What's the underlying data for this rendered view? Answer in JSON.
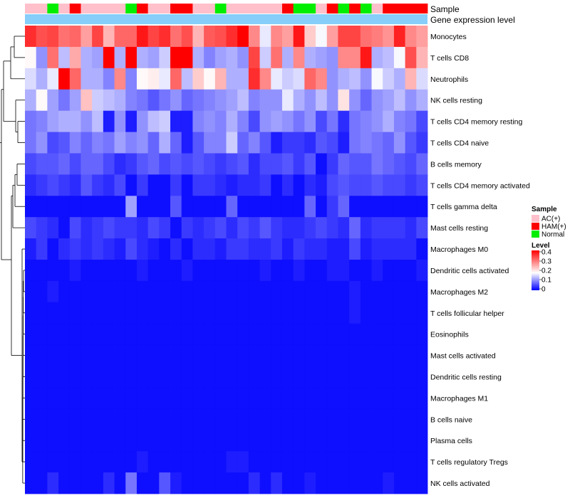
{
  "chart_data": {
    "type": "heatmap",
    "title": "",
    "annotation_tracks": [
      {
        "name": "Sample",
        "label": "Sample"
      },
      {
        "name": "Gene expression level",
        "label": "Gene expression level"
      }
    ],
    "samples": [
      "AC(+)",
      "AC(+)",
      "Normal",
      "AC(+)",
      "HAM(+)",
      "AC(+)",
      "AC(+)",
      "AC(+)",
      "AC(+)",
      "Normal",
      "HAM(+)",
      "AC(+)",
      "AC(+)",
      "HAM(+)",
      "HAM(+)",
      "AC(+)",
      "AC(+)",
      "Normal",
      "AC(+)",
      "AC(+)",
      "AC(+)",
      "AC(+)",
      "AC(+)",
      "HAM(+)",
      "Normal",
      "Normal",
      "AC(+)",
      "HAM(+)",
      "Normal",
      "HAM(+)",
      "Normal",
      "AC(+)",
      "HAM(+)",
      "HAM(+)",
      "HAM(+)",
      "HAM(+)"
    ],
    "rows": [
      {
        "name": "Monocytes",
        "values": [
          0.36,
          0.33,
          0.34,
          0.3,
          0.31,
          0.26,
          0.34,
          0.24,
          0.31,
          0.31,
          0.38,
          0.34,
          0.36,
          0.3,
          0.33,
          0.24,
          0.32,
          0.33,
          0.36,
          0.4,
          0.28,
          0.16,
          0.28,
          0.26,
          0.38,
          0.22,
          0.17,
          0.26,
          0.34,
          0.34,
          0.3,
          0.29,
          0.27,
          0.37,
          0.28,
          0.26
        ]
      },
      {
        "name": "T cells CD8",
        "values": [
          0.18,
          0.1,
          0.3,
          0.13,
          0.25,
          0.12,
          0.11,
          0.4,
          0.12,
          0.4,
          0.12,
          0.11,
          0.14,
          0.4,
          0.4,
          0.12,
          0.09,
          0.11,
          0.12,
          0.1,
          0.34,
          0.14,
          0.3,
          0.12,
          0.28,
          0.12,
          0.11,
          0.1,
          0.28,
          0.28,
          0.38,
          0.12,
          0.13,
          0.17,
          0.33,
          0.24
        ]
      },
      {
        "name": "Neutrophils",
        "values": [
          0.15,
          0.12,
          0.16,
          0.4,
          0.31,
          0.12,
          0.12,
          0.09,
          0.28,
          0.09,
          0.18,
          0.19,
          0.16,
          0.31,
          0.13,
          0.22,
          0.18,
          0.24,
          0.12,
          0.12,
          0.36,
          0.28,
          0.16,
          0.14,
          0.15,
          0.31,
          0.28,
          0.1,
          0.12,
          0.13,
          0.1,
          0.17,
          0.14,
          0.12,
          0.24,
          0.15
        ]
      },
      {
        "name": "NK cells resting",
        "values": [
          0.12,
          0.18,
          0.11,
          0.08,
          0.11,
          0.23,
          0.14,
          0.13,
          0.12,
          0.09,
          0.08,
          0.06,
          0.08,
          0.1,
          0.07,
          0.08,
          0.09,
          0.1,
          0.11,
          0.13,
          0.09,
          0.1,
          0.1,
          0.16,
          0.12,
          0.1,
          0.13,
          0.1,
          0.2,
          0.1,
          0.07,
          0.1,
          0.11,
          0.13,
          0.1,
          0.12
        ]
      },
      {
        "name": "T cells CD4 memory resting",
        "values": [
          0.08,
          0.09,
          0.11,
          0.12,
          0.12,
          0.1,
          0.13,
          0.02,
          0.1,
          0.02,
          0.1,
          0.13,
          0.14,
          0.02,
          0.02,
          0.09,
          0.1,
          0.09,
          0.12,
          0.09,
          0.05,
          0.1,
          0.11,
          0.1,
          0.08,
          0.1,
          0.05,
          0.08,
          0.03,
          0.08,
          0.09,
          0.1,
          0.12,
          0.09,
          0.08,
          0.05
        ]
      },
      {
        "name": "T cells CD4 naive",
        "values": [
          0.08,
          0.1,
          0.05,
          0.06,
          0.09,
          0.07,
          0.09,
          0.08,
          0.11,
          0.09,
          0.1,
          0.07,
          0.12,
          0.07,
          0.02,
          0.06,
          0.09,
          0.09,
          0.14,
          0.07,
          0.09,
          0.06,
          0.02,
          0.04,
          0.04,
          0.03,
          0.06,
          0.05,
          0.02,
          0.08,
          0.09,
          0.08,
          0.07,
          0.1,
          0.06,
          0.04
        ]
      },
      {
        "name": "B cells memory",
        "values": [
          0.05,
          0.06,
          0.06,
          0.07,
          0.05,
          0.07,
          0.07,
          0.05,
          0.03,
          0.04,
          0.06,
          0.07,
          0.05,
          0.06,
          0.05,
          0.06,
          0.05,
          0.04,
          0.05,
          0.06,
          0.03,
          0.05,
          0.05,
          0.06,
          0.04,
          0.06,
          0.01,
          0.04,
          0.07,
          0.06,
          0.06,
          0.08,
          0.07,
          0.06,
          0.05,
          0.07
        ]
      },
      {
        "name": "T cells CD4 memory activated",
        "values": [
          0.03,
          0.04,
          0.05,
          0.04,
          0.03,
          0.06,
          0.04,
          0.03,
          0.05,
          0.01,
          0.04,
          0.01,
          0.01,
          0.04,
          0.01,
          0.04,
          0.04,
          0.03,
          0.02,
          0.03,
          0.03,
          0.04,
          0.01,
          0.03,
          0.01,
          0.03,
          0.02,
          0.05,
          0.06,
          0.05,
          0.05,
          0.06,
          0.05,
          0.05,
          0.04,
          0.05
        ]
      },
      {
        "name": "T cells gamma delta",
        "values": [
          0.01,
          0.01,
          0.01,
          0.01,
          0.01,
          0.01,
          0.01,
          0.01,
          0.01,
          0.11,
          0.01,
          0.01,
          0.01,
          0.06,
          0.01,
          0.01,
          0.01,
          0.01,
          0.07,
          0.01,
          0.01,
          0.01,
          0.01,
          0.01,
          0.01,
          0.07,
          0.01,
          0.04,
          0.07,
          0.01,
          0.01,
          0.01,
          0.01,
          0.01,
          0.01,
          0.01
        ]
      },
      {
        "name": "Mast cells resting",
        "values": [
          0.05,
          0.04,
          0.03,
          0.01,
          0.05,
          0.03,
          0.04,
          0.05,
          0.04,
          0.04,
          0.03,
          0.05,
          0.04,
          0.01,
          0.04,
          0.03,
          0.04,
          0.05,
          0.03,
          0.05,
          0.04,
          0.06,
          0.04,
          0.03,
          0.03,
          0.04,
          0.05,
          0.04,
          0.03,
          0.07,
          0.03,
          0.04,
          0.04,
          0.04,
          0.03,
          0.05
        ]
      },
      {
        "name": "Macrophages M0",
        "values": [
          0.02,
          0.04,
          0.01,
          0.03,
          0.04,
          0.03,
          0.04,
          0.03,
          0.02,
          0.05,
          0.03,
          0.02,
          0.01,
          0.03,
          0.01,
          0.03,
          0.03,
          0.02,
          0.04,
          0.04,
          0.03,
          0.03,
          0.04,
          0.02,
          0.04,
          0.03,
          0.03,
          0.02,
          0.02,
          0.05,
          0.02,
          0.03,
          0.03,
          0.03,
          0.03,
          0.01
        ]
      },
      {
        "name": "Dendritic cells activated",
        "values": [
          0.01,
          0.01,
          0.01,
          0.01,
          0.02,
          0.01,
          0.01,
          0.01,
          0.01,
          0.01,
          0.02,
          0.01,
          0.01,
          0.01,
          0.02,
          0.01,
          0.01,
          0.01,
          0.01,
          0.01,
          0.01,
          0.02,
          0.01,
          0.01,
          0.02,
          0.01,
          0.01,
          0.02,
          0.02,
          0.01,
          0.01,
          0.02,
          0.01,
          0.01,
          0.01,
          0.02
        ]
      },
      {
        "name": "Macrophages M2",
        "values": [
          0.01,
          0.01,
          0.02,
          0.01,
          0.01,
          0.01,
          0.01,
          0.01,
          0.01,
          0.01,
          0.01,
          0.01,
          0.01,
          0.01,
          0.01,
          0.01,
          0.01,
          0.01,
          0.01,
          0.01,
          0.01,
          0.01,
          0.01,
          0.01,
          0.01,
          0.01,
          0.01,
          0.01,
          0.01,
          0.02,
          0.01,
          0.01,
          0.01,
          0.01,
          0.01,
          0.01
        ]
      },
      {
        "name": "T cells follicular helper",
        "values": [
          0.01,
          0.01,
          0.01,
          0.01,
          0.01,
          0.01,
          0.01,
          0.01,
          0.01,
          0.01,
          0.01,
          0.01,
          0.01,
          0.01,
          0.01,
          0.01,
          0.01,
          0.01,
          0.01,
          0.01,
          0.01,
          0.01,
          0.01,
          0.01,
          0.01,
          0.01,
          0.01,
          0.01,
          0.01,
          0.02,
          0.01,
          0.01,
          0.01,
          0.01,
          0.01,
          0.01
        ]
      },
      {
        "name": "Eosinophils",
        "values": [
          0.01,
          0.01,
          0.01,
          0.01,
          0.01,
          0.01,
          0.01,
          0.01,
          0.01,
          0.01,
          0.01,
          0.01,
          0.01,
          0.01,
          0.01,
          0.01,
          0.01,
          0.01,
          0.01,
          0.01,
          0.01,
          0.01,
          0.01,
          0.01,
          0.01,
          0.01,
          0.01,
          0.01,
          0.01,
          0.01,
          0.01,
          0.01,
          0.01,
          0.01,
          0.01,
          0.01
        ]
      },
      {
        "name": "Mast cells activated",
        "values": [
          0.01,
          0.01,
          0.01,
          0.01,
          0.01,
          0.01,
          0.01,
          0.01,
          0.01,
          0.01,
          0.01,
          0.01,
          0.01,
          0.01,
          0.01,
          0.01,
          0.01,
          0.01,
          0.01,
          0.01,
          0.01,
          0.01,
          0.01,
          0.01,
          0.01,
          0.01,
          0.01,
          0.01,
          0.01,
          0.01,
          0.01,
          0.01,
          0.01,
          0.01,
          0.01,
          0.01
        ]
      },
      {
        "name": "Dendritic cells resting",
        "values": [
          0.01,
          0.01,
          0.01,
          0.01,
          0.01,
          0.01,
          0.01,
          0.01,
          0.01,
          0.01,
          0.01,
          0.01,
          0.01,
          0.01,
          0.01,
          0.01,
          0.01,
          0.01,
          0.01,
          0.01,
          0.01,
          0.01,
          0.01,
          0.01,
          0.01,
          0.01,
          0.01,
          0.01,
          0.01,
          0.01,
          0.01,
          0.01,
          0.01,
          0.01,
          0.01,
          0.01
        ]
      },
      {
        "name": "Macrophages M1",
        "values": [
          0.01,
          0.01,
          0.01,
          0.01,
          0.01,
          0.01,
          0.01,
          0.01,
          0.01,
          0.01,
          0.01,
          0.01,
          0.01,
          0.01,
          0.01,
          0.01,
          0.01,
          0.01,
          0.01,
          0.01,
          0.01,
          0.01,
          0.01,
          0.01,
          0.01,
          0.01,
          0.01,
          0.01,
          0.01,
          0.01,
          0.01,
          0.01,
          0.01,
          0.01,
          0.01,
          0.01
        ]
      },
      {
        "name": "B cells naive",
        "values": [
          0.01,
          0.01,
          0.01,
          0.01,
          0.01,
          0.01,
          0.01,
          0.01,
          0.01,
          0.01,
          0.01,
          0.01,
          0.01,
          0.01,
          0.01,
          0.01,
          0.01,
          0.01,
          0.01,
          0.01,
          0.01,
          0.01,
          0.01,
          0.01,
          0.01,
          0.01,
          0.01,
          0.01,
          0.01,
          0.01,
          0.01,
          0.01,
          0.01,
          0.01,
          0.01,
          0.01
        ]
      },
      {
        "name": "Plasma cells",
        "values": [
          0.01,
          0.01,
          0.01,
          0.01,
          0.01,
          0.01,
          0.01,
          0.01,
          0.01,
          0.01,
          0.01,
          0.01,
          0.01,
          0.01,
          0.01,
          0.01,
          0.01,
          0.01,
          0.01,
          0.01,
          0.01,
          0.01,
          0.01,
          0.01,
          0.01,
          0.01,
          0.01,
          0.01,
          0.01,
          0.01,
          0.01,
          0.01,
          0.01,
          0.01,
          0.01,
          0.01
        ]
      },
      {
        "name": "T cells regulatory  Tregs",
        "values": [
          0.01,
          0.01,
          0.01,
          0.01,
          0.01,
          0.01,
          0.01,
          0.01,
          0.01,
          0.01,
          0.02,
          0.01,
          0.01,
          0.01,
          0.01,
          0.01,
          0.01,
          0.01,
          0.02,
          0.02,
          0.01,
          0.01,
          0.01,
          0.01,
          0.01,
          0.01,
          0.01,
          0.01,
          0.01,
          0.01,
          0.01,
          0.01,
          0.01,
          0.01,
          0.01,
          0.01
        ]
      },
      {
        "name": "NK cells activated",
        "values": [
          0.01,
          0.01,
          0.03,
          0.01,
          0.01,
          0.01,
          0.01,
          0.03,
          0.01,
          0.08,
          0.01,
          0.01,
          0.06,
          0.02,
          0.01,
          0.01,
          0.01,
          0.01,
          0.01,
          0.01,
          0.03,
          0.01,
          0.03,
          0.01,
          0.01,
          0.02,
          0.01,
          0.01,
          0.01,
          0.01,
          0.01,
          0.01,
          0.02,
          0.01,
          0.01,
          0.01
        ]
      }
    ],
    "legend_sample": {
      "title": "Sample",
      "items": [
        {
          "label": "AC(+)",
          "color": "#FFC0CB"
        },
        {
          "label": "HAM(+)",
          "color": "#FF0000"
        },
        {
          "label": "Normal",
          "color": "#00EE00"
        }
      ]
    },
    "legend_level": {
      "title": "Level",
      "ticks": [
        "0.4",
        "0.3",
        "0.2",
        "0.1",
        "0"
      ],
      "range": [
        0,
        0.4
      ],
      "colors": {
        "low": "#0000FF",
        "mid": "#FFFFFF",
        "high": "#FF0000"
      },
      "mid_value": 0.175
    },
    "expression_track_color": "#87CEFA"
  }
}
